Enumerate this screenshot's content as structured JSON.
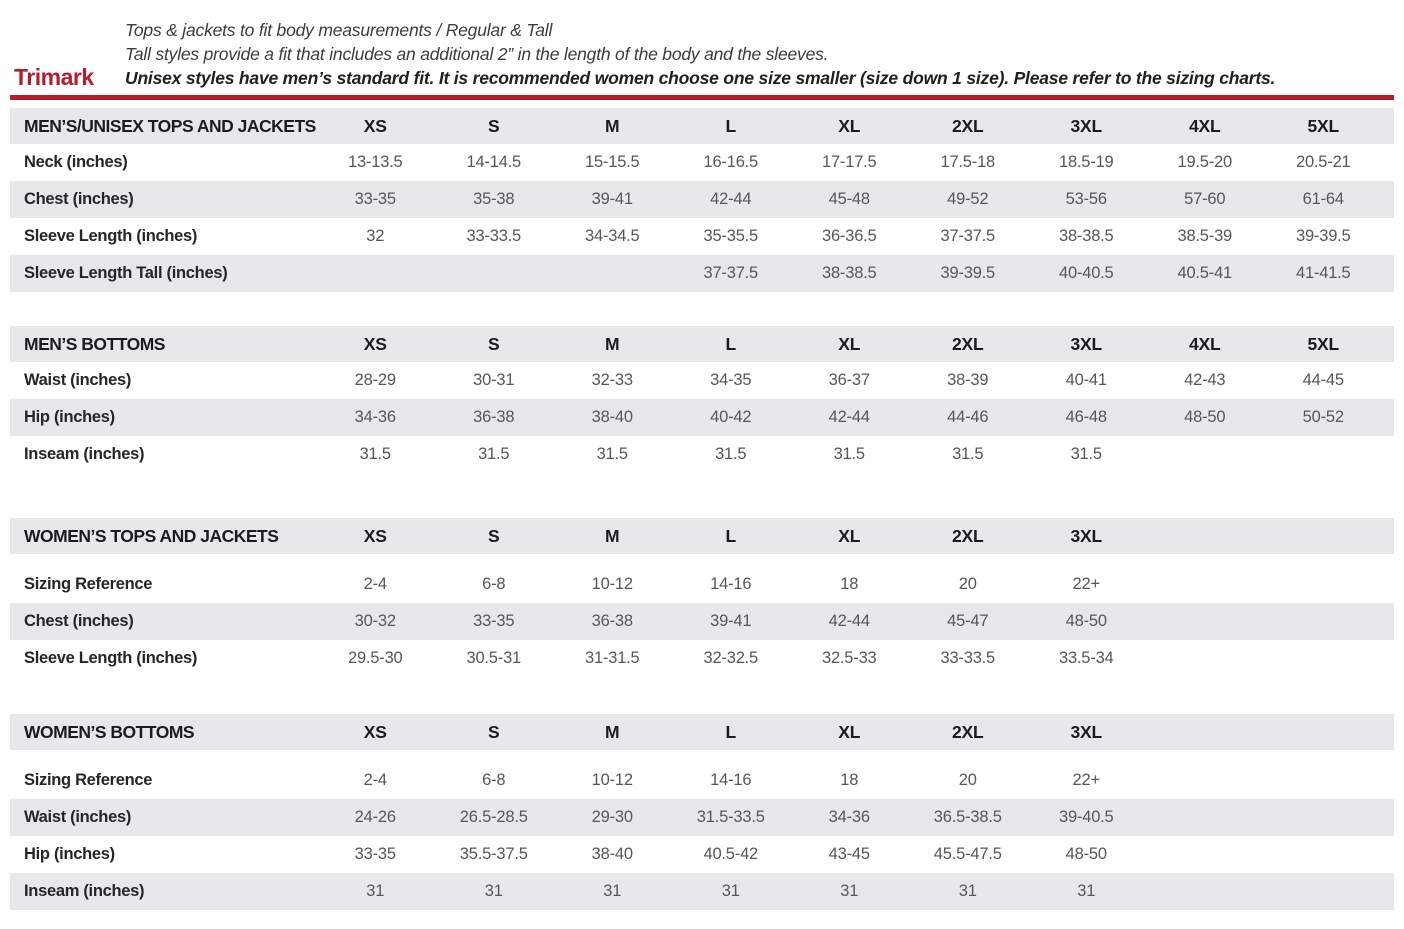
{
  "brand": "Trimark",
  "intro": {
    "line1": "Tops & jackets to fit body measurements / Regular & Tall",
    "line2": "Tall styles provide a fit that includes an additional 2” in the length of the body and the sleeves.",
    "line3": "Unisex styles have men’s standard fit. It is recommended women choose one size smaller (size down 1 size).  Please refer to the sizing charts."
  },
  "colors": {
    "accent_red": "#b01f2a",
    "row_stripe_gray": "#e8e8ea",
    "value_text": "#55575c"
  },
  "tables": [
    {
      "title": "MEN’S/UNISEX TOPS AND JACKETS",
      "header_gap": false,
      "columns": [
        "XS",
        "S",
        "M",
        "L",
        "XL",
        "2XL",
        "3XL",
        "4XL",
        "5XL"
      ],
      "rows": [
        {
          "label": "Neck (inches)",
          "values": [
            "13-13.5",
            "14-14.5",
            "15-15.5",
            "16-16.5",
            "17-17.5",
            "17.5-18",
            "18.5-19",
            "19.5-20",
            "20.5-21"
          ]
        },
        {
          "label": "Chest (inches)",
          "values": [
            "33-35",
            "35-38",
            "39-41",
            "42-44",
            "45-48",
            "49-52",
            "53-56",
            "57-60",
            "61-64"
          ]
        },
        {
          "label": "Sleeve Length (inches)",
          "values": [
            "32",
            "33-33.5",
            "34-34.5",
            "35-35.5",
            "36-36.5",
            "37-37.5",
            "38-38.5",
            "38.5-39",
            "39-39.5"
          ]
        },
        {
          "label": "Sleeve Length Tall (inches)",
          "values": [
            "",
            "",
            "",
            "37-37.5",
            "38-38.5",
            "39-39.5",
            "40-40.5",
            "40.5-41",
            "41-41.5"
          ]
        }
      ]
    },
    {
      "title": "MEN’S BOTTOMS",
      "header_gap": false,
      "columns": [
        "XS",
        "S",
        "M",
        "L",
        "XL",
        "2XL",
        "3XL",
        "4XL",
        "5XL"
      ],
      "rows": [
        {
          "label": "Waist (inches)",
          "values": [
            "28-29",
            "30-31",
            "32-33",
            "34-35",
            "36-37",
            "38-39",
            "40-41",
            "42-43",
            "44-45"
          ]
        },
        {
          "label": "Hip (inches)",
          "values": [
            "34-36",
            "36-38",
            "38-40",
            "40-42",
            "42-44",
            "44-46",
            "46-48",
            "48-50",
            "50-52"
          ]
        },
        {
          "label": "Inseam (inches)",
          "values": [
            "31.5",
            "31.5",
            "31.5",
            "31.5",
            "31.5",
            "31.5",
            "31.5",
            "",
            ""
          ]
        }
      ]
    },
    {
      "title": "WOMEN’S TOPS AND JACKETS",
      "header_gap": true,
      "columns": [
        "XS",
        "S",
        "M",
        "L",
        "XL",
        "2XL",
        "3XL",
        "",
        ""
      ],
      "rows": [
        {
          "label": "Sizing Reference",
          "values": [
            "2-4",
            "6-8",
            "10-12",
            "14-16",
            "18",
            "20",
            "22+",
            "",
            ""
          ]
        },
        {
          "label": "Chest (inches)",
          "values": [
            "30-32",
            "33-35",
            "36-38",
            "39-41",
            "42-44",
            "45-47",
            "48-50",
            "",
            ""
          ]
        },
        {
          "label": "Sleeve Length (inches)",
          "values": [
            "29.5-30",
            "30.5-31",
            "31-31.5",
            "32-32.5",
            "32.5-33",
            "33-33.5",
            "33.5-34",
            "",
            ""
          ]
        }
      ]
    },
    {
      "title": "WOMEN’S BOTTOMS",
      "header_gap": true,
      "columns": [
        "XS",
        "S",
        "M",
        "L",
        "XL",
        "2XL",
        "3XL",
        "",
        ""
      ],
      "rows": [
        {
          "label": "Sizing Reference",
          "values": [
            "2-4",
            "6-8",
            "10-12",
            "14-16",
            "18",
            "20",
            "22+",
            "",
            ""
          ]
        },
        {
          "label": "Waist (inches)",
          "values": [
            "24-26",
            "26.5-28.5",
            "29-30",
            "31.5-33.5",
            "34-36",
            "36.5-38.5",
            "39-40.5",
            "",
            ""
          ]
        },
        {
          "label": "Hip (inches)",
          "values": [
            "33-35",
            "35.5-37.5",
            "38-40",
            "40.5-42",
            "43-45",
            "45.5-47.5",
            "48-50",
            "",
            ""
          ]
        },
        {
          "label": "Inseam (inches)",
          "values": [
            "31",
            "31",
            "31",
            "31",
            "31",
            "31",
            "31",
            "",
            ""
          ]
        }
      ]
    }
  ]
}
